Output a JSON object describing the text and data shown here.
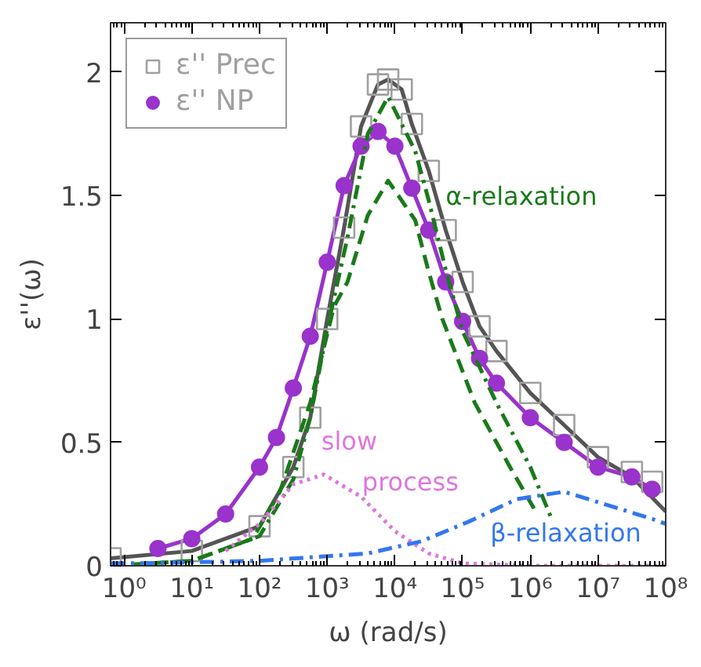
{
  "chart_data": {
    "type": "scatter",
    "xlabel": "ω (rad/s)",
    "ylabel": "ε''(ω)",
    "log": "x",
    "xlim": [
      0.631,
      100000000.0
    ],
    "ylim": [
      0,
      2.2
    ],
    "xticks": [
      {
        "value": 1,
        "label": "10⁰"
      },
      {
        "value": 10,
        "label": "10¹"
      },
      {
        "value": 100,
        "label": "10²"
      },
      {
        "value": 1000,
        "label": "10³"
      },
      {
        "value": 10000,
        "label": "10⁴"
      },
      {
        "value": 100000,
        "label": "10⁵"
      },
      {
        "value": 1000000,
        "label": "10⁶"
      },
      {
        "value": 10000000,
        "label": "10⁷"
      },
      {
        "value": 100000000,
        "label": "10⁸"
      }
    ],
    "yticks": [
      0,
      0.5,
      1,
      1.5,
      2
    ],
    "grid": false,
    "legend": "top left",
    "series": [
      {
        "type": "line",
        "color": "#555555",
        "line_style": "solid",
        "x": [
          0.631,
          10,
          100,
          316,
          562,
          1000,
          1778,
          3162,
          5623,
          7943,
          12589,
          17783,
          31623,
          56234,
          100000,
          177828,
          316228,
          1000000,
          3162278,
          10000000,
          31622777,
          100000000
        ],
        "values": [
          0.03,
          0.06,
          0.16,
          0.4,
          0.6,
          1.0,
          1.37,
          1.78,
          1.95,
          1.97,
          1.93,
          1.79,
          1.6,
          1.36,
          1.15,
          0.97,
          0.87,
          0.7,
          0.57,
          0.44,
          0.36,
          0.22
        ]
      },
      {
        "type": "line",
        "color": "#9933cc",
        "line_style": "solid",
        "x": [
          3.16,
          10,
          31.6,
          100,
          178,
          316,
          562,
          1000,
          1778,
          3162,
          5623,
          10000,
          17783,
          31623,
          56234,
          100000,
          177828,
          316228,
          1000000,
          3162278,
          10000000,
          31622777,
          63095734
        ],
        "values": [
          0.07,
          0.11,
          0.21,
          0.4,
          0.52,
          0.72,
          0.93,
          1.23,
          1.54,
          1.7,
          1.76,
          1.7,
          1.53,
          1.36,
          1.15,
          0.99,
          0.84,
          0.74,
          0.6,
          0.5,
          0.4,
          0.36,
          0.31
        ]
      },
      {
        "name": "ε'' Prec",
        "marker": "square",
        "color": "#a0a0a0",
        "x": [
          0.631,
          10,
          100,
          316,
          562,
          1000,
          1778,
          3162,
          5623,
          7943,
          12589,
          17783,
          31623,
          56234,
          100000,
          177828,
          316228,
          1000000,
          3162278,
          10000000,
          31622777,
          63095734
        ],
        "values": [
          0.03,
          0.06,
          0.16,
          0.4,
          0.6,
          1.0,
          1.37,
          1.78,
          1.95,
          1.97,
          1.93,
          1.79,
          1.6,
          1.36,
          1.15,
          0.97,
          0.87,
          0.7,
          0.57,
          0.44,
          0.38,
          0.34
        ]
      },
      {
        "name": "ε'' NP",
        "marker": "circle",
        "color": "#9933cc",
        "x": [
          3.16,
          10,
          31.6,
          100,
          178,
          316,
          562,
          1000,
          1778,
          3162,
          5623,
          10000,
          17783,
          31623,
          56234,
          100000,
          177828,
          316228,
          1000000,
          3162278,
          10000000,
          31622777,
          63095734
        ],
        "values": [
          0.07,
          0.11,
          0.21,
          0.4,
          0.52,
          0.72,
          0.93,
          1.23,
          1.54,
          1.7,
          1.76,
          1.7,
          1.53,
          1.36,
          1.15,
          0.99,
          0.84,
          0.74,
          0.6,
          0.5,
          0.4,
          0.36,
          0.31
        ]
      },
      {
        "type": "line",
        "color": "#1a7a1a",
        "line_style": "dashed",
        "x": [
          0.631,
          10,
          79.4,
          200,
          562,
          1259,
          1995,
          3981,
          7943,
          19953,
          31623,
          50119,
          151356,
          316228,
          501187,
          1258925
        ],
        "values": [
          0.0,
          0.02,
          0.11,
          0.3,
          0.66,
          1.05,
          1.15,
          1.42,
          1.56,
          1.4,
          1.19,
          1.0,
          0.66,
          0.5,
          0.4,
          0.21
        ]
      },
      {
        "type": "line",
        "color": "#1a7a1a",
        "line_style": "dashdot",
        "x": [
          0.631,
          10,
          100,
          316,
          562,
          1000,
          1995,
          3981,
          7943,
          19953,
          31623,
          56234,
          100000,
          316228,
          1000000,
          1995262
        ],
        "values": [
          0.0,
          0.02,
          0.12,
          0.35,
          0.6,
          0.96,
          1.33,
          1.75,
          1.9,
          1.68,
          1.48,
          1.2,
          0.95,
          0.66,
          0.4,
          0.2
        ]
      },
      {
        "type": "line",
        "color": "#dd77dd",
        "line_style": "dotted",
        "x": [
          31.6,
          100,
          316,
          891,
          3162,
          10000,
          31623,
          100000,
          1000000,
          100000000
        ],
        "values": [
          0.06,
          0.17,
          0.33,
          0.37,
          0.28,
          0.14,
          0.05,
          0.01,
          0.0,
          0.0
        ]
      },
      {
        "type": "line",
        "color": "#3377ee",
        "line_style": "dashdot",
        "x": [
          0.631,
          1.58,
          100,
          3981,
          25119,
          125893,
          630957,
          3162278,
          63095734,
          100000000
        ],
        "values": [
          0.01,
          0.01,
          0.02,
          0.05,
          0.1,
          0.18,
          0.27,
          0.3,
          0.19,
          0.17
        ]
      }
    ],
    "annotations": [
      "α-relaxation",
      "slow",
      "process",
      "β-relaxation"
    ]
  }
}
